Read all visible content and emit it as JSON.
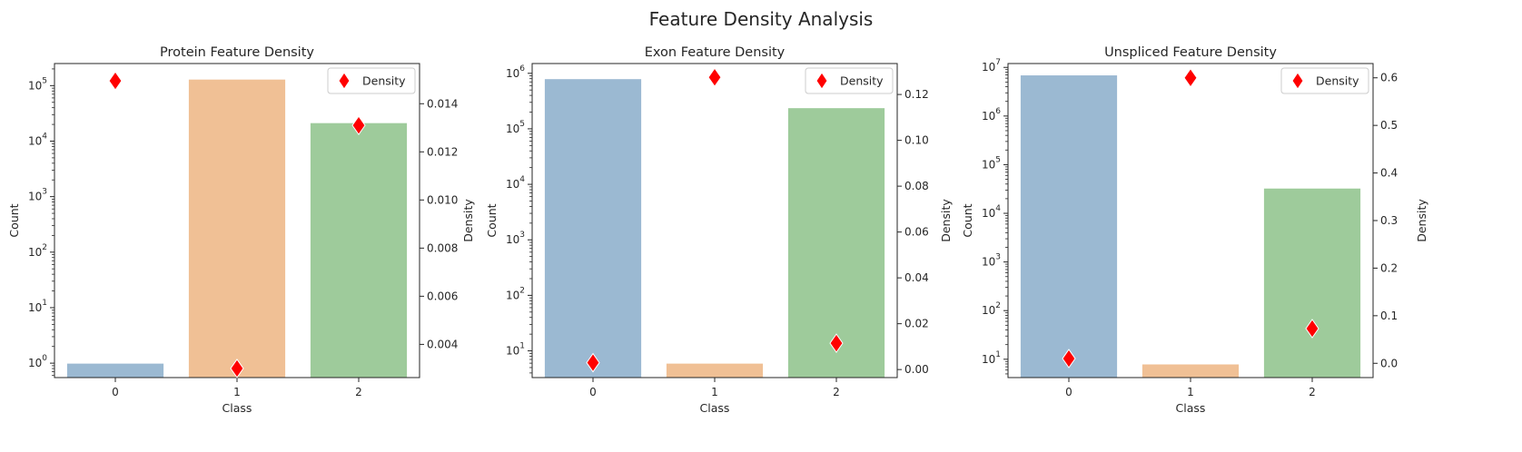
{
  "suptitle": "Feature Density Analysis",
  "chart_data": [
    {
      "type": "bar",
      "title": "Protein Feature Density",
      "xlabel": "Class",
      "ylabel": "Count",
      "y2label": "Density",
      "categories": [
        "0",
        "1",
        "2"
      ],
      "yscale": "log",
      "ylim": [
        0.55,
        250000
      ],
      "y_ticks": [
        {
          "value": 1,
          "label": "10",
          "exp": "0"
        },
        {
          "value": 10,
          "label": "10",
          "exp": "1"
        },
        {
          "value": 100,
          "label": "10",
          "exp": "2"
        },
        {
          "value": 1000,
          "label": "10",
          "exp": "3"
        },
        {
          "value": 10000,
          "label": "10",
          "exp": "4"
        },
        {
          "value": 100000,
          "label": "10",
          "exp": "5"
        }
      ],
      "series": [
        {
          "values": [
            1,
            131000,
            21500
          ],
          "colors": [
            "#9bb9d2",
            "#f0c095",
            "#9ecb9b"
          ]
        }
      ],
      "y2lim": [
        0.00262,
        0.01567
      ],
      "y2_ticks": [
        0.004,
        0.006,
        0.008,
        0.01,
        0.012,
        0.014
      ],
      "y2_tick_labels": [
        "0.004",
        "0.006",
        "0.008",
        "0.010",
        "0.012",
        "0.014"
      ],
      "density_series": {
        "name": "Density",
        "values": [
          0.01495,
          0.003,
          0.0131
        ],
        "color": "#ff0000"
      },
      "legend": "top-right"
    },
    {
      "type": "bar",
      "title": "Exon Feature Density",
      "xlabel": "Class",
      "ylabel": "Count",
      "y2label": "Density",
      "categories": [
        "0",
        "1",
        "2"
      ],
      "yscale": "log",
      "ylim": [
        3.3,
        1500000
      ],
      "y_ticks": [
        {
          "value": 10,
          "label": "10",
          "exp": "1"
        },
        {
          "value": 100,
          "label": "10",
          "exp": "2"
        },
        {
          "value": 1000,
          "label": "10",
          "exp": "3"
        },
        {
          "value": 10000,
          "label": "10",
          "exp": "4"
        },
        {
          "value": 100000,
          "label": "10",
          "exp": "5"
        },
        {
          "value": 1000000,
          "label": "10",
          "exp": "6"
        }
      ],
      "series": [
        {
          "values": [
            800000,
            6,
            240000
          ],
          "colors": [
            "#9bb9d2",
            "#f0c095",
            "#9ecb9b"
          ]
        }
      ],
      "y2lim": [
        -0.0035,
        0.1335
      ],
      "y2_ticks": [
        0.0,
        0.02,
        0.04,
        0.06,
        0.08,
        0.1,
        0.12
      ],
      "y2_tick_labels": [
        "0.00",
        "0.02",
        "0.04",
        "0.06",
        "0.08",
        "0.10",
        "0.12"
      ],
      "density_series": {
        "name": "Density",
        "values": [
          0.003,
          0.1275,
          0.0115
        ],
        "color": "#ff0000"
      },
      "legend": "top-right"
    },
    {
      "type": "bar",
      "title": "Unspliced Feature Density",
      "xlabel": "Class",
      "ylabel": "Count",
      "y2label": "Density",
      "categories": [
        "0",
        "1",
        "2"
      ],
      "yscale": "log",
      "ylim": [
        4.2,
        12000000
      ],
      "y_ticks": [
        {
          "value": 10,
          "label": "10",
          "exp": "1"
        },
        {
          "value": 100,
          "label": "10",
          "exp": "2"
        },
        {
          "value": 1000,
          "label": "10",
          "exp": "3"
        },
        {
          "value": 10000,
          "label": "10",
          "exp": "4"
        },
        {
          "value": 100000,
          "label": "10",
          "exp": "5"
        },
        {
          "value": 1000000,
          "label": "10",
          "exp": "6"
        },
        {
          "value": 10000000,
          "label": "10",
          "exp": "7"
        }
      ],
      "series": [
        {
          "values": [
            7000000,
            8,
            33000
          ],
          "colors": [
            "#9bb9d2",
            "#f0c095",
            "#9ecb9b"
          ]
        }
      ],
      "y2lim": [
        -0.03,
        0.63
      ],
      "y2_ticks": [
        0.0,
        0.1,
        0.2,
        0.3,
        0.4,
        0.5,
        0.6
      ],
      "y2_tick_labels": [
        "0.0",
        "0.1",
        "0.2",
        "0.3",
        "0.4",
        "0.5",
        "0.6"
      ],
      "density_series": {
        "name": "Density",
        "values": [
          0.01,
          0.6,
          0.073
        ],
        "color": "#ff0000"
      },
      "legend": "top-right"
    }
  ]
}
